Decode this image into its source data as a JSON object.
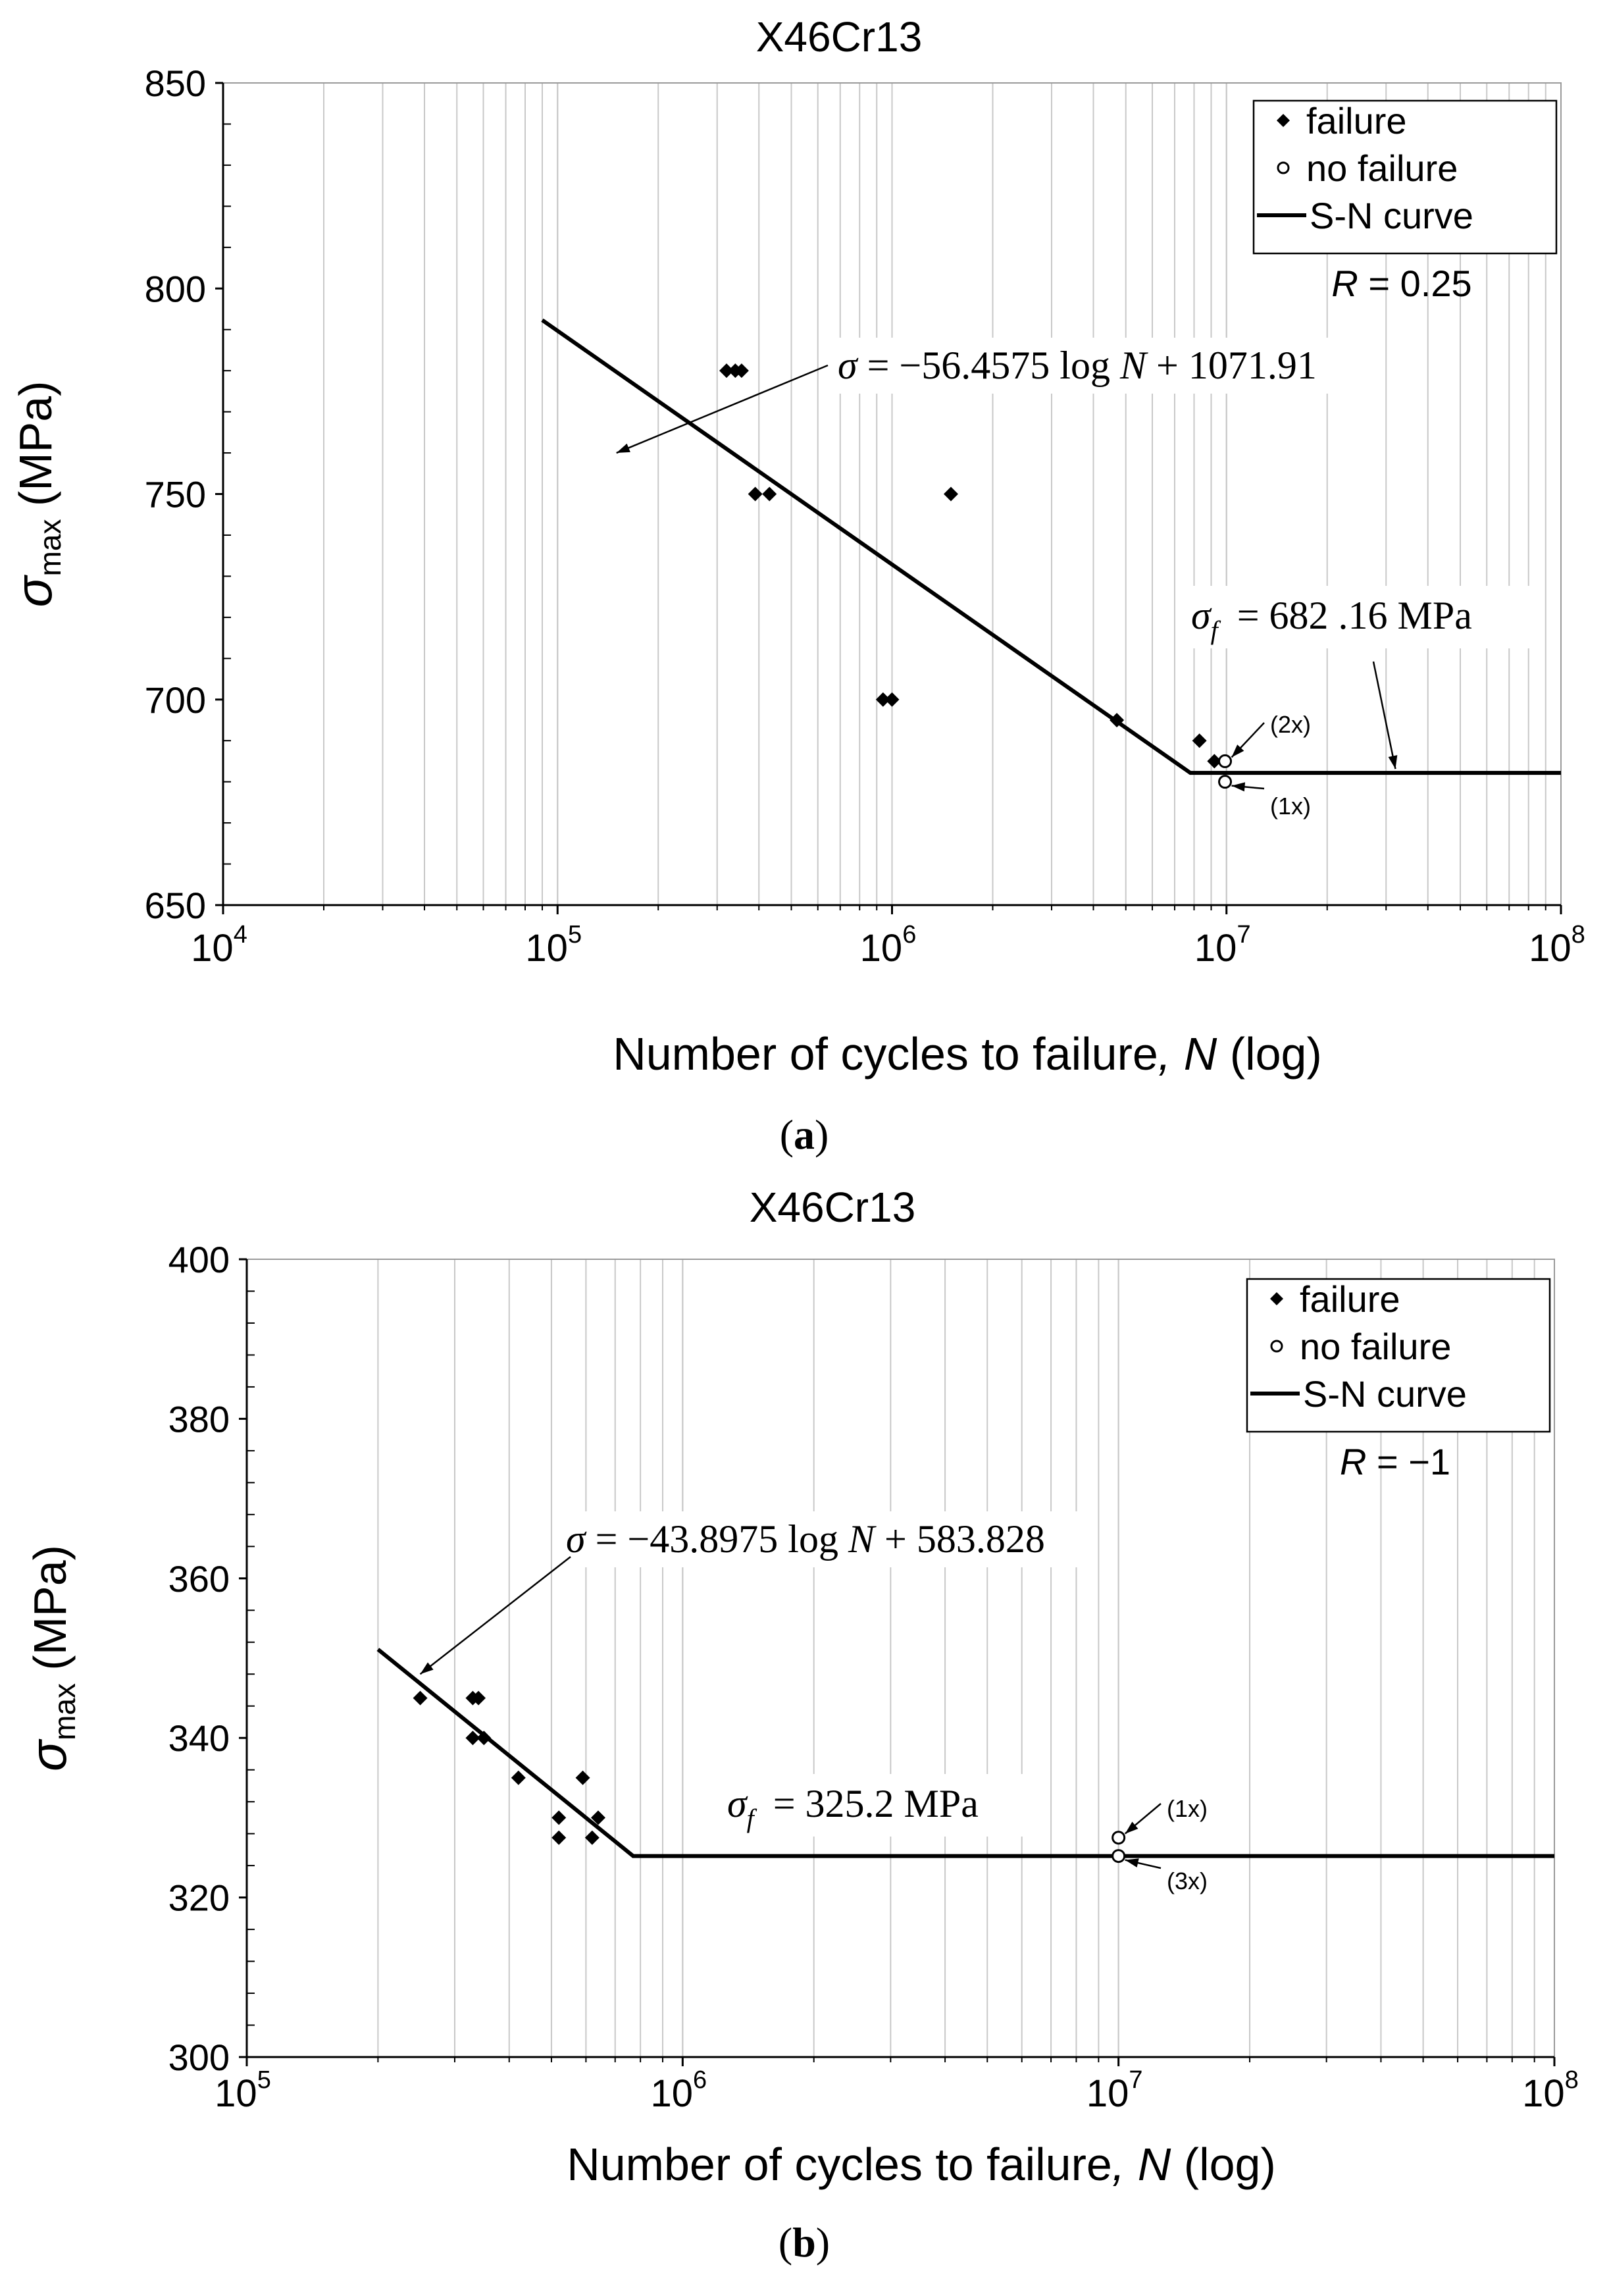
{
  "chart_data": [
    {
      "id": "a",
      "type": "scatter",
      "title": "X46Cr13",
      "panel_label": "a",
      "xlabel": {
        "pre": "Number of cycles to failure",
        "comma": ",",
        "var": "N",
        "post": "(log)"
      },
      "ylabel": {
        "sym": "σ",
        "sub": "max",
        "unit": "(MPa)"
      },
      "x_scale": "log",
      "xlim": [
        10000,
        100000000
      ],
      "ylim": [
        650,
        850
      ],
      "y_ticks": [
        650,
        700,
        750,
        800,
        850
      ],
      "x_ticks": [
        {
          "v": 10000,
          "base": "10",
          "exp": "4"
        },
        {
          "v": 100000,
          "base": "10",
          "exp": "5"
        },
        {
          "v": 1000000,
          "base": "10",
          "exp": "6"
        },
        {
          "v": 10000000,
          "base": "10",
          "exp": "7"
        },
        {
          "v": 100000000,
          "base": "10",
          "exp": "8"
        }
      ],
      "grid": true,
      "legend_position": "top-right",
      "legend": {
        "failure": "failure",
        "no_failure": "no failure",
        "curve": "S-N curve",
        "r_var": "R",
        "r_val": "= 0.25"
      },
      "series": [
        {
          "name": "failure",
          "marker": "diamond",
          "points": [
            [
              320000,
              780
            ],
            [
              340000,
              780
            ],
            [
              355000,
              780
            ],
            [
              390000,
              750
            ],
            [
              430000,
              750
            ],
            [
              1500000,
              750
            ],
            [
              940000,
              700
            ],
            [
              1000000,
              700
            ],
            [
              4700000,
              695
            ],
            [
              8300000,
              690
            ],
            [
              9200000,
              685
            ]
          ]
        },
        {
          "name": "no failure",
          "marker": "circle",
          "points": [
            [
              9900000,
              685
            ],
            [
              9900000,
              680
            ]
          ]
        },
        {
          "name": "S-N curve",
          "line": [
            [
              90000,
              792.3
            ],
            [
              7800000,
              682.16
            ],
            [
              100000000,
              682.16
            ]
          ]
        }
      ],
      "annotations": [
        {
          "kind": "eq",
          "parts": [
            "σ",
            " = −56.4575 log ",
            "N",
            " + 1071.91"
          ],
          "arrow_to": [
            150000,
            760
          ]
        },
        {
          "kind": "sf",
          "parts": [
            "σ",
            "f",
            "= 682 .16 MPa"
          ],
          "arrow_to": [
            32000000,
            682.16
          ]
        },
        {
          "kind": "count",
          "text": "(2x)",
          "arrow_to": [
            9900000,
            685
          ]
        },
        {
          "kind": "count",
          "text": "(1x)",
          "arrow_to": [
            9900000,
            680
          ]
        }
      ]
    },
    {
      "id": "b",
      "type": "scatter",
      "title": "X46Cr13",
      "panel_label": "b",
      "xlabel": {
        "pre": "Number of cycles to failure",
        "comma": ",",
        "var": "N",
        "post": "(log)"
      },
      "ylabel": {
        "sym": "σ",
        "sub": "max",
        "unit": "(MPa)"
      },
      "x_scale": "log",
      "xlim": [
        100000,
        100000000
      ],
      "ylim": [
        300,
        400
      ],
      "y_ticks": [
        300,
        320,
        340,
        360,
        380,
        400
      ],
      "x_ticks": [
        {
          "v": 100000,
          "base": "10",
          "exp": "5"
        },
        {
          "v": 1000000,
          "base": "10",
          "exp": "6"
        },
        {
          "v": 10000000,
          "base": "10",
          "exp": "7"
        },
        {
          "v": 100000000,
          "base": "10",
          "exp": "8"
        }
      ],
      "grid": true,
      "legend_position": "top-right",
      "legend": {
        "failure": "failure",
        "no_failure": "no failure",
        "curve": "S-N curve",
        "r_var": "R",
        "r_val": "= −1"
      },
      "series": [
        {
          "name": "failure",
          "marker": "diamond",
          "points": [
            [
              250000,
              345
            ],
            [
              330000,
              345
            ],
            [
              340000,
              345
            ],
            [
              330000,
              340
            ],
            [
              350000,
              340
            ],
            [
              420000,
              335
            ],
            [
              590000,
              335
            ],
            [
              520000,
              330
            ],
            [
              640000,
              330
            ],
            [
              520000,
              327.5
            ],
            [
              620000,
              327.5
            ]
          ]
        },
        {
          "name": "no failure",
          "marker": "circle",
          "points": [
            [
              10000000,
              327.5
            ],
            [
              10000000,
              325.2
            ]
          ]
        },
        {
          "name": "S-N curve",
          "line": [
            [
              200000,
              351.1
            ],
            [
              770000,
              325.2
            ],
            [
              100000000,
              325.2
            ]
          ]
        }
      ],
      "annotations": [
        {
          "kind": "eq",
          "parts": [
            "σ",
            " = −43.8975 log ",
            "N",
            " + 583.828"
          ],
          "arrow_to": [
            250000,
            348
          ]
        },
        {
          "kind": "sf",
          "parts": [
            "σ",
            "f",
            "= 325.2 MPa"
          ]
        },
        {
          "kind": "count",
          "text": "(1x)",
          "arrow_to": [
            10000000,
            327.5
          ]
        },
        {
          "kind": "count",
          "text": "(3x)",
          "arrow_to": [
            10000000,
            325.2
          ]
        }
      ]
    }
  ]
}
